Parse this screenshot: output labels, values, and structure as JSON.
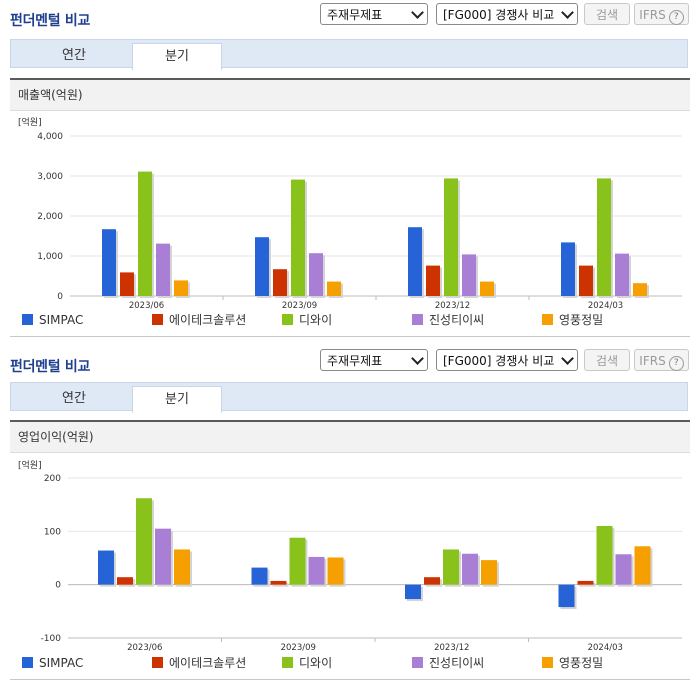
{
  "sections": [
    {
      "header": {
        "title": "펀더멘털 비교",
        "statement_select": "주재무제표",
        "peer_select": "[FG000] 경쟁사 비교",
        "search_label": "검색",
        "ifrs_label": "IFRS"
      },
      "tabs": [
        {
          "label": "연간"
        },
        {
          "label": "분기"
        }
      ],
      "chart_title": "매출액(억원)"
    },
    {
      "header": {
        "title": "펀더멘털 비교",
        "statement_select": "주재무제표",
        "peer_select": "[FG000] 경쟁사 비교",
        "search_label": "검색",
        "ifrs_label": "IFRS"
      },
      "tabs": [
        {
          "label": "연간"
        },
        {
          "label": "분기"
        }
      ],
      "chart_title": "영업이익(억원)"
    }
  ],
  "chart_data": [
    {
      "type": "bar",
      "title": "매출액(억원)",
      "unit_label": "[억원]",
      "categories": [
        "2023/06",
        "2023/09",
        "2023/12",
        "2024/03"
      ],
      "ylim": [
        0,
        4000
      ],
      "yticks": [
        0,
        1000,
        2000,
        3000,
        4000
      ],
      "ytick_labels": [
        "0",
        "1,000",
        "2,000",
        "3,000",
        "4,000"
      ],
      "grid": true,
      "legend_position": "bottom",
      "series": [
        {
          "name": "SIMPAC",
          "color": "#2563d6",
          "values": [
            1670,
            1470,
            1720,
            1340
          ]
        },
        {
          "name": "에이테크솔루션",
          "color": "#cc3300",
          "values": [
            590,
            670,
            760,
            760
          ]
        },
        {
          "name": "디와이",
          "color": "#88c21a",
          "values": [
            3110,
            2910,
            2940,
            2940
          ]
        },
        {
          "name": "진성티이씨",
          "color": "#a97fd6",
          "values": [
            1310,
            1070,
            1040,
            1060
          ]
        },
        {
          "name": "영풍정밀",
          "color": "#f5a000",
          "values": [
            390,
            360,
            360,
            320
          ]
        }
      ]
    },
    {
      "type": "bar",
      "title": "영업이익(억원)",
      "unit_label": "[억원]",
      "categories": [
        "2023/06",
        "2023/09",
        "2023/12",
        "2024/03"
      ],
      "ylim": [
        -100,
        200
      ],
      "yticks": [
        -100,
        0,
        100,
        200
      ],
      "ytick_labels": [
        "-100",
        "0",
        "100",
        "200"
      ],
      "grid": true,
      "legend_position": "bottom",
      "series": [
        {
          "name": "SIMPAC",
          "color": "#2563d6",
          "values": [
            64,
            32,
            -27,
            -42
          ]
        },
        {
          "name": "에이테크솔루션",
          "color": "#cc3300",
          "values": [
            14,
            7,
            14,
            7
          ]
        },
        {
          "name": "디와이",
          "color": "#88c21a",
          "values": [
            162,
            88,
            66,
            110
          ]
        },
        {
          "name": "진성티이씨",
          "color": "#a97fd6",
          "values": [
            105,
            52,
            58,
            57
          ]
        },
        {
          "name": "영풍정밀",
          "color": "#f5a000",
          "values": [
            66,
            51,
            46,
            72
          ]
        }
      ]
    }
  ]
}
